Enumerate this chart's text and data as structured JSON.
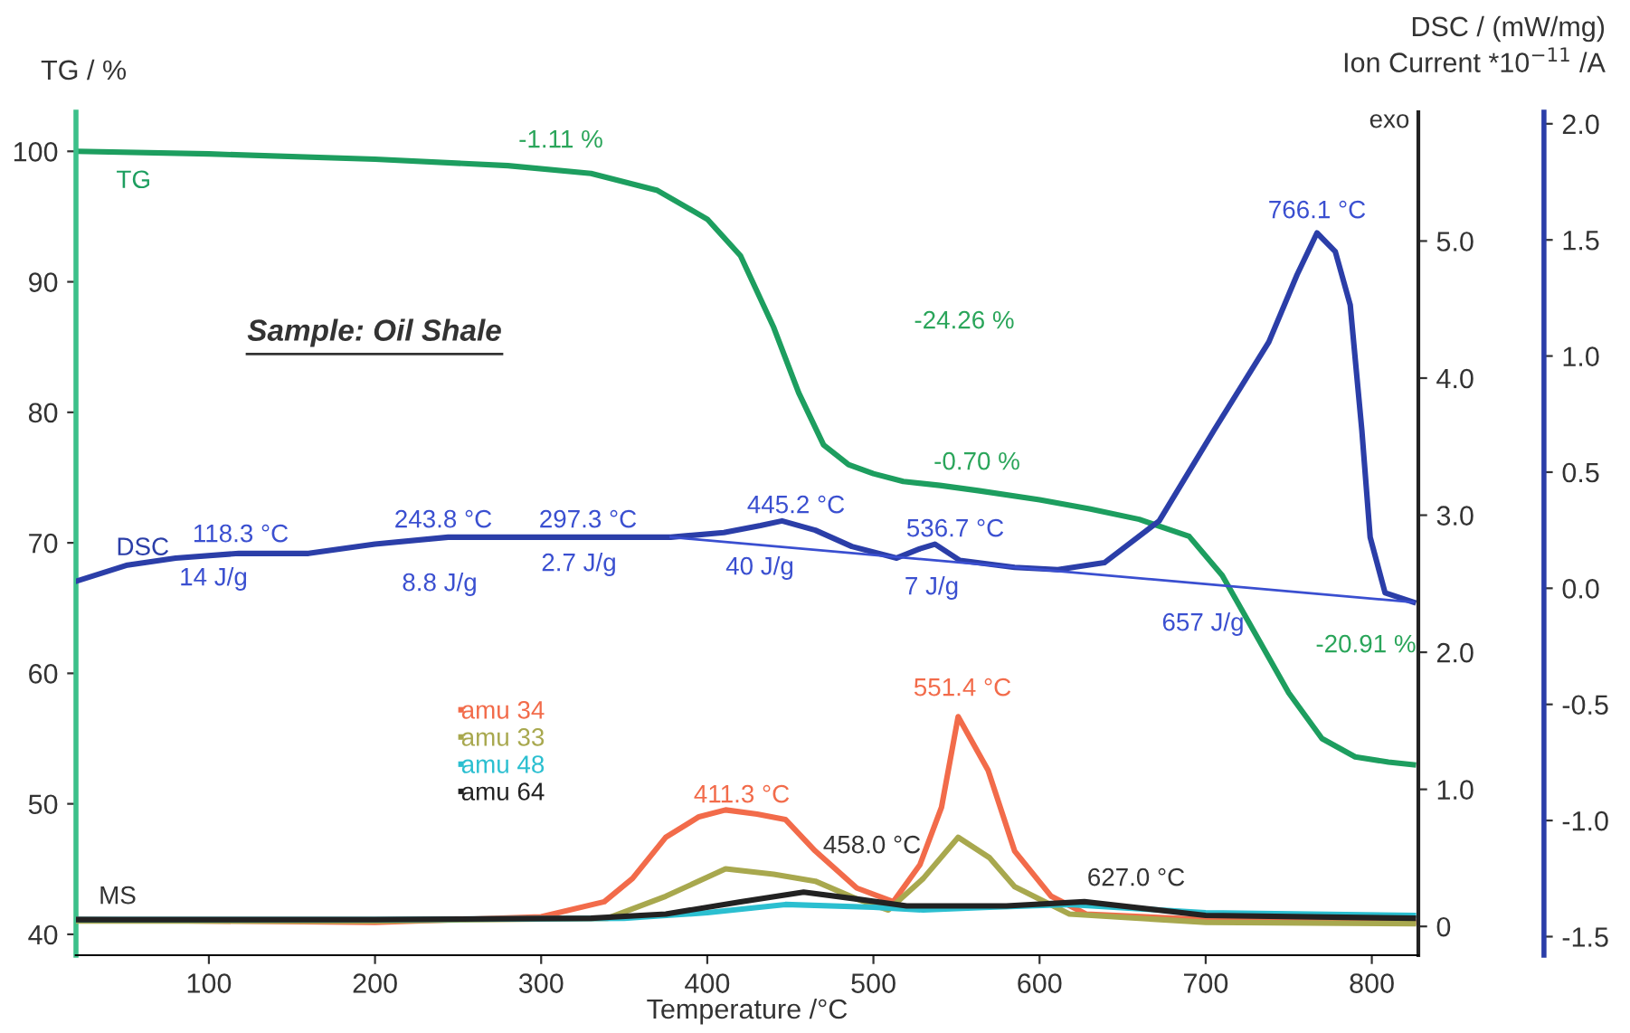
{
  "chart_data": {
    "type": "line",
    "xlabel": "Temperature /°C",
    "ylabel": "TG / %",
    "y2label": "DSC / (mW/mg)",
    "y3label": "Ion Current *10$^{−11}$ /A",
    "xlim": [
      20,
      828
    ],
    "xticks": [
      100,
      200,
      300,
      400,
      500,
      600,
      700,
      800
    ],
    "ylim": [
      38.4,
      103
    ],
    "yticks": [
      40,
      50,
      60,
      70,
      80,
      90,
      100
    ],
    "y2lim": [
      -1.58,
      2.05
    ],
    "y2ticks": [
      {
        "value": -1.5,
        "label": "-1.5"
      },
      {
        "value": -1.0,
        "label": "-1.0"
      },
      {
        "value": -0.5,
        "label": "-0.5"
      },
      {
        "value": 0,
        "label": "0.0"
      },
      0.5,
      {
        "value": 1.0,
        "label": "1.0"
      },
      1.5,
      {
        "value": 2.0,
        "label": "2.0"
      }
    ],
    "y3lim": [
      -0.21,
      5.94
    ],
    "y3ticks": [
      0,
      {
        "value": 1,
        "label": "1.0"
      },
      {
        "value": 2,
        "label": "2.0"
      },
      {
        "value": 3,
        "label": "3.0"
      },
      {
        "value": 4,
        "label": "4.0"
      },
      {
        "value": 5,
        "label": "5.0"
      }
    ],
    "grid": false,
    "legend": "left",
    "marker": "none",
    "line_style": "solid",
    "series": [
      {
        "name": "TG",
        "color": "#1d9e5f",
        "axis": "y",
        "x": [
          20,
          100,
          200,
          280,
          330,
          370,
          400,
          420,
          440,
          455,
          470,
          485,
          500,
          518,
          540,
          563,
          600,
          630,
          660,
          690,
          710,
          730,
          750,
          770,
          790,
          810,
          825
        ],
        "values": [
          100,
          99.8,
          99.4,
          98.9,
          98.3,
          97.0,
          94.8,
          92.0,
          86.5,
          81.5,
          77.5,
          76.0,
          75.3,
          74.7,
          74.4,
          74.0,
          73.3,
          72.6,
          71.8,
          70.5,
          67.5,
          63.0,
          58.5,
          55.0,
          53.6,
          53.2,
          53.0
        ]
      },
      {
        "name": "DSC",
        "color": "#2b3ea8",
        "axis": "y2",
        "x": [
          20,
          51,
          80,
          118,
          160,
          200,
          244,
          297,
          356,
          378,
          410,
          432,
          445,
          465,
          487,
          514,
          528,
          537,
          552,
          585,
          611,
          639,
          672,
          705,
          738,
          755,
          767,
          778,
          787,
          794,
          799,
          808,
          825
        ],
        "values": [
          0.03,
          0.1,
          0.13,
          0.15,
          0.15,
          0.19,
          0.22,
          0.22,
          0.22,
          0.22,
          0.24,
          0.27,
          0.29,
          0.25,
          0.18,
          0.13,
          0.17,
          0.19,
          0.12,
          0.09,
          0.08,
          0.11,
          0.29,
          0.68,
          1.06,
          1.35,
          1.53,
          1.45,
          1.22,
          0.68,
          0.22,
          -0.02,
          -0.06
        ]
      },
      {
        "color": "#3a4fd0",
        "axis": "y2",
        "x": [
          378,
          825
        ],
        "values": [
          0.22,
          -0.06
        ]
      },
      {
        "name": "amu 34",
        "color": "#f26b4a",
        "axis": "y3",
        "x": [
          20,
          100,
          200,
          300,
          338,
          355,
          375,
          395,
          411,
          430,
          447,
          465,
          490,
          512,
          528,
          541,
          551,
          569,
          585,
          607,
          628,
          700,
          825
        ],
        "values": [
          0.05,
          0.04,
          0.03,
          0.07,
          0.18,
          0.35,
          0.65,
          0.8,
          0.85,
          0.82,
          0.78,
          0.55,
          0.28,
          0.18,
          0.45,
          0.87,
          1.53,
          1.14,
          0.55,
          0.22,
          0.09,
          0.05,
          0.03
        ]
      },
      {
        "name": "amu 33",
        "color": "#a8a84e",
        "axis": "y3",
        "x": [
          20,
          200,
          340,
          375,
          411,
          440,
          465,
          490,
          509,
          530,
          551,
          570,
          585,
          618,
          700,
          825
        ],
        "values": [
          0.04,
          0.04,
          0.06,
          0.22,
          0.42,
          0.38,
          0.33,
          0.2,
          0.12,
          0.35,
          0.65,
          0.5,
          0.29,
          0.09,
          0.03,
          0.02
        ]
      },
      {
        "name": "amu 48",
        "color": "#2bbfd0",
        "axis": "y3",
        "x": [
          20,
          200,
          350,
          400,
          447,
          500,
          530,
          570,
          618,
          700,
          825
        ],
        "values": [
          0.05,
          0.05,
          0.06,
          0.1,
          0.16,
          0.14,
          0.12,
          0.14,
          0.16,
          0.1,
          0.08
        ]
      },
      {
        "name": "amu 64",
        "color": "#222222",
        "axis": "y3",
        "x": [
          20,
          200,
          330,
          375,
          420,
          458,
          490,
          520,
          580,
          627,
          700,
          825
        ],
        "values": [
          0.05,
          0.05,
          0.06,
          0.09,
          0.18,
          0.25,
          0.2,
          0.15,
          0.15,
          0.18,
          0.08,
          0.06
        ]
      }
    ],
    "annotations": [
      "Sample: Oil Shale",
      "MS",
      "exo",
      "-1.11 %",
      "-24.26 %",
      "-0.70 %",
      "-20.91 %",
      "766.1 °C",
      "118.3 °C",
      "14 J/g",
      "243.8 °C",
      "8.8 J/g",
      "297.3 °C",
      "2.7 J/g",
      "445.2 °C",
      "40 J/g",
      "536.7 °C",
      "7 J/g",
      "657 J/g",
      "411.3 °C",
      "458.0 °C",
      "551.4 °C",
      "627.0 °C"
    ]
  }
}
